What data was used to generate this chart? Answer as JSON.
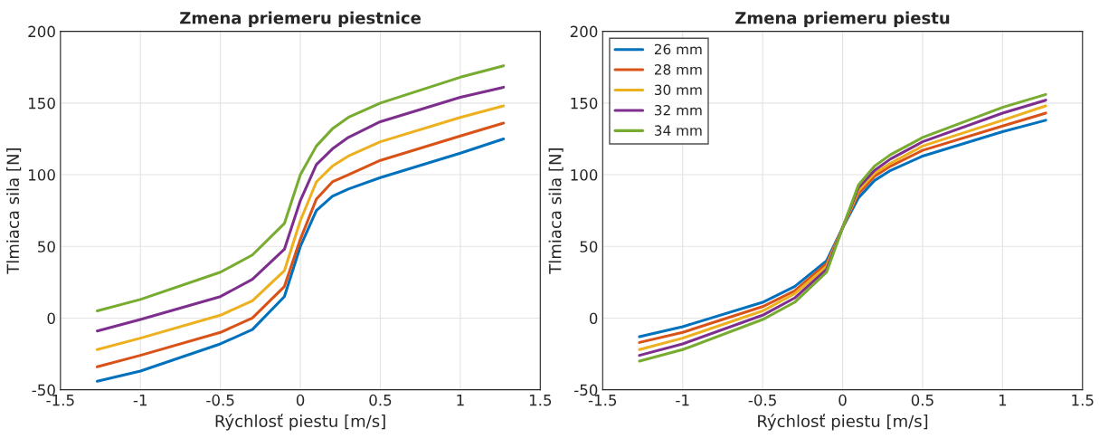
{
  "chart_data": [
    {
      "type": "line",
      "title": "Zmena priemeru piestnice",
      "xlabel": "Rýchlosť piestu [m/s]",
      "ylabel": "Tlmiaca sila [N]",
      "x": [
        -1.27,
        -1,
        -0.5,
        -0.3,
        -0.1,
        0,
        0.1,
        0.2,
        0.3,
        0.5,
        1,
        1.27
      ],
      "xlim": [
        -1.5,
        1.5
      ],
      "xticks": [
        -1.5,
        -1,
        -0.5,
        0,
        0.5,
        1,
        1.5
      ],
      "ylim": [
        -50,
        200
      ],
      "yticks": [
        -50,
        0,
        50,
        100,
        150,
        200
      ],
      "grid": true,
      "legend": false,
      "series": [
        {
          "color": "#0072bd",
          "values": [
            -44,
            -37,
            -18,
            -8,
            15,
            50,
            75,
            85,
            90,
            98,
            115,
            125
          ]
        },
        {
          "color": "#d95319",
          "values": [
            -34,
            -26,
            -10,
            0,
            22,
            55,
            83,
            95,
            100,
            110,
            127,
            136
          ]
        },
        {
          "color": "#edb120",
          "values": [
            -22,
            -14,
            2,
            12,
            33,
            68,
            95,
            106,
            113,
            123,
            140,
            148
          ]
        },
        {
          "color": "#7e2f8e",
          "values": [
            -9,
            -1,
            15,
            27,
            48,
            82,
            107,
            118,
            126,
            137,
            154,
            161
          ]
        },
        {
          "color": "#77ac30",
          "values": [
            5,
            13,
            32,
            44,
            66,
            100,
            120,
            132,
            140,
            150,
            168,
            176
          ]
        }
      ]
    },
    {
      "type": "line",
      "title": "Zmena priemeru piestu",
      "xlabel": "Rýchlosť piestu [m/s]",
      "ylabel": "Tlmiaca sila [N]",
      "x": [
        -1.27,
        -1,
        -0.5,
        -0.3,
        -0.1,
        0,
        0.1,
        0.2,
        0.3,
        0.5,
        1,
        1.27
      ],
      "xlim": [
        -1.5,
        1.5
      ],
      "xticks": [
        -1.5,
        -1,
        -0.5,
        0,
        0.5,
        1,
        1.5
      ],
      "ylim": [
        -50,
        200
      ],
      "yticks": [
        -50,
        0,
        50,
        100,
        150,
        200
      ],
      "grid": true,
      "legend": "top left",
      "series": [
        {
          "name": "26 mm",
          "color": "#0072bd",
          "values": [
            -13,
            -6,
            11,
            22,
            40,
            63,
            84,
            96,
            103,
            113,
            130,
            138
          ]
        },
        {
          "name": "28 mm",
          "color": "#d95319",
          "values": [
            -17,
            -10,
            8,
            19,
            38,
            63,
            87,
            99,
            106,
            117,
            134,
            143
          ]
        },
        {
          "name": "30 mm",
          "color": "#edb120",
          "values": [
            -22,
            -14,
            5,
            17,
            36,
            63,
            89,
            101,
            108,
            120,
            138,
            148
          ]
        },
        {
          "name": "32 mm",
          "color": "#7e2f8e",
          "values": [
            -26,
            -18,
            2,
            14,
            34,
            63,
            91,
            103,
            111,
            123,
            143,
            152
          ]
        },
        {
          "name": "34 mm",
          "color": "#77ac30",
          "values": [
            -30,
            -22,
            -1,
            11,
            32,
            63,
            93,
            106,
            114,
            126,
            147,
            156
          ]
        }
      ]
    }
  ]
}
